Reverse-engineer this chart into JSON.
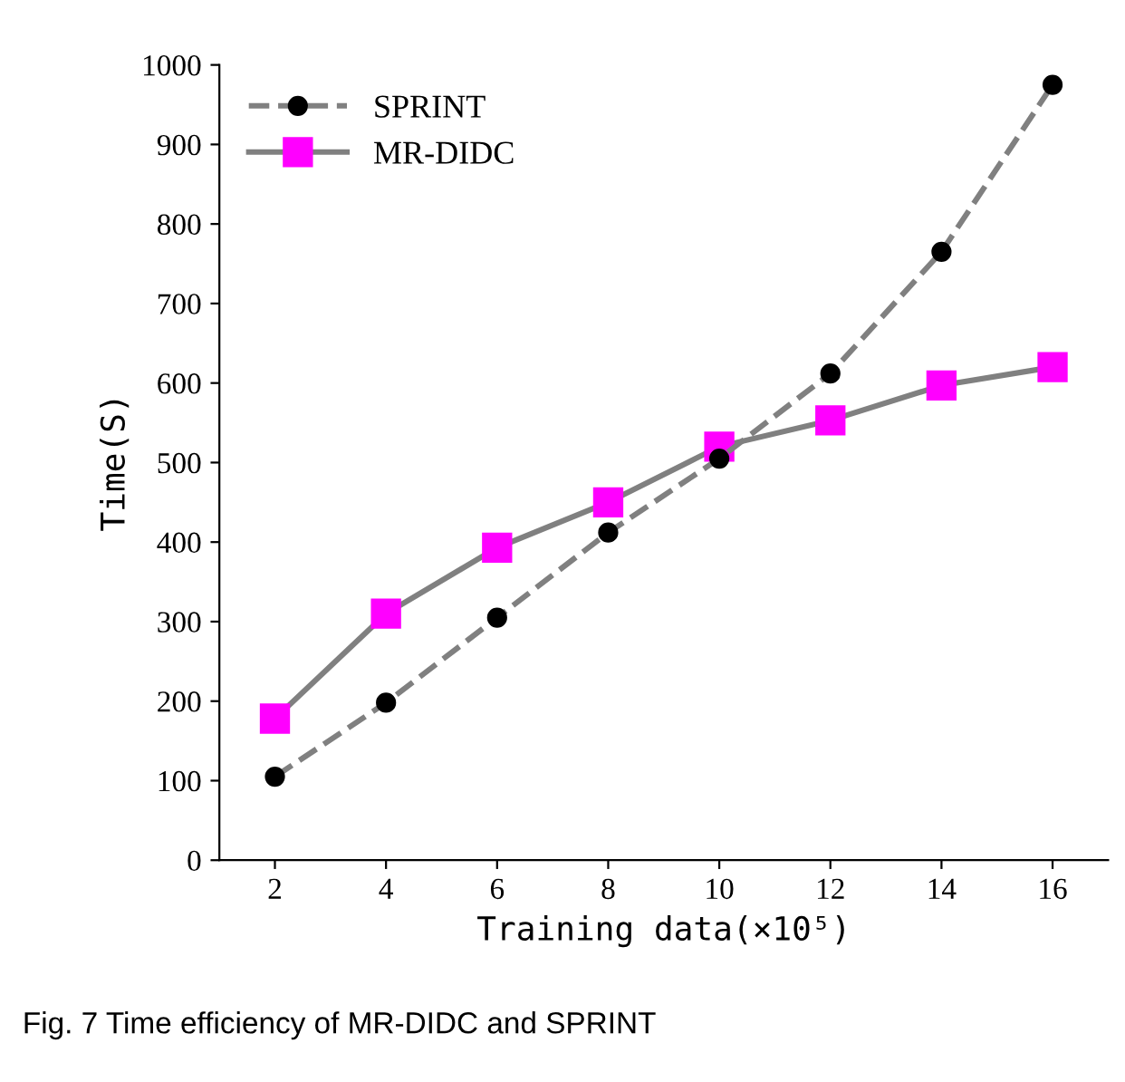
{
  "chart_data": {
    "type": "line",
    "xlabel": "Training data(×10⁵)",
    "ylabel": "Time(S)",
    "categories": [
      "2",
      "4",
      "6",
      "8",
      "10",
      "12",
      "14",
      "16"
    ],
    "ylim": [
      0,
      1000
    ],
    "yticks": [
      0,
      100,
      200,
      300,
      400,
      500,
      600,
      700,
      800,
      900,
      1000
    ],
    "grid": false,
    "legend": "top left",
    "series": [
      {
        "name": "SPRINT",
        "color": "#000000",
        "marker": "circle",
        "line_style": "dashed",
        "values": [
          105,
          198,
          305,
          412,
          505,
          612,
          765,
          975
        ]
      },
      {
        "name": "MR-DIDC",
        "color": "#ff00ff",
        "marker": "square",
        "line_style": "solid",
        "values": [
          178,
          310,
          393,
          450,
          520,
          553,
          597,
          620
        ]
      }
    ],
    "annotations": [
      "Fig. 7 Time efficiency of MR-DIDC and SPRINT"
    ]
  }
}
